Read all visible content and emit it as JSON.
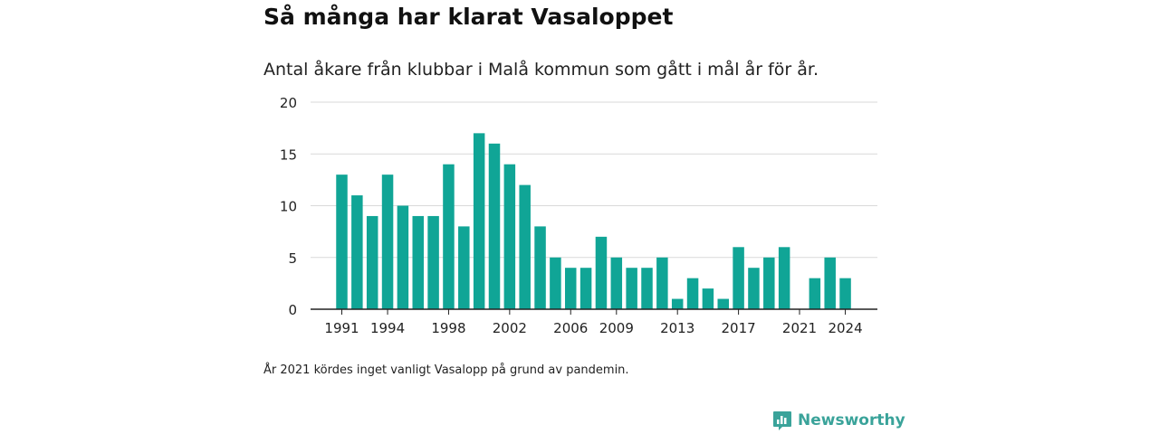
{
  "title": "Så många har klarat Vasaloppet",
  "subtitle": "Antal åkare från klubbar i Malå kommun som gått i mål år för år.",
  "note": "År 2021 kördes inget vanligt Vasalopp på grund av pandemin.",
  "brand": "Newsworthy",
  "colors": {
    "bar": "#10a596",
    "grid": "#d9d9d9",
    "axis": "#222222",
    "brand": "#3aa39a"
  },
  "chart_data": {
    "type": "bar",
    "x": [
      1991,
      1992,
      1993,
      1994,
      1995,
      1996,
      1997,
      1998,
      1999,
      2000,
      2001,
      2002,
      2003,
      2004,
      2005,
      2006,
      2007,
      2008,
      2009,
      2010,
      2011,
      2012,
      2013,
      2014,
      2015,
      2016,
      2017,
      2018,
      2019,
      2020,
      2021,
      2022,
      2023,
      2024
    ],
    "values": [
      13,
      11,
      9,
      13,
      10,
      9,
      9,
      14,
      8,
      17,
      16,
      14,
      12,
      8,
      5,
      4,
      4,
      7,
      5,
      4,
      4,
      5,
      1,
      3,
      2,
      1,
      6,
      4,
      5,
      6,
      0,
      3,
      5,
      3
    ],
    "x_tick_labels": [
      "1991",
      "1994",
      "1998",
      "2002",
      "2006",
      "2009",
      "2013",
      "2017",
      "2021",
      "2024"
    ],
    "y_ticks": [
      0,
      5,
      10,
      15,
      20
    ],
    "ylim": [
      0,
      20
    ],
    "xlabel": "",
    "ylabel": "",
    "grid": true
  }
}
